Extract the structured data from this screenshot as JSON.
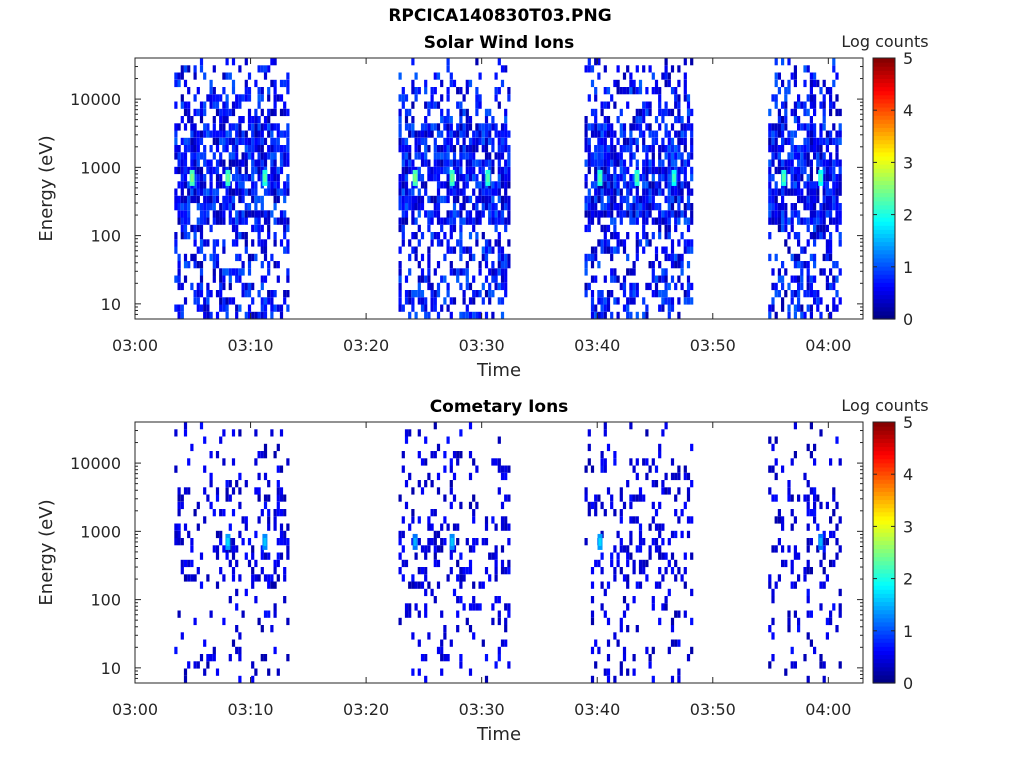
{
  "figure_title": "RPCICA140830T03.PNG",
  "colorbar": {
    "label": "Log counts",
    "ticks": [
      "0",
      "1",
      "2",
      "3",
      "4",
      "5"
    ],
    "range": [
      0,
      5
    ],
    "colormap": "jet"
  },
  "chart_data": [
    {
      "type": "heatmap",
      "title": "Solar Wind Ions",
      "xlabel": "Time",
      "ylabel": "Energy (eV)",
      "x_tick_labels": [
        "03:00",
        "03:10",
        "03:20",
        "03:30",
        "03:40",
        "03:50",
        "04:00"
      ],
      "x_tick_minutes": [
        0,
        10,
        20,
        30,
        40,
        50,
        60
      ],
      "xlim_minutes": [
        0,
        63
      ],
      "yscale": "log",
      "ylim": [
        6,
        40000
      ],
      "y_tick_labels": [
        "10",
        "100",
        "1000",
        "10000"
      ],
      "y_tick_values": [
        10,
        100,
        1000,
        10000
      ],
      "observation_windows_minutes": [
        [
          3.4,
          13.3
        ],
        [
          22.8,
          32.4
        ],
        [
          38.9,
          48.1
        ],
        [
          54.8,
          61.0
        ]
      ],
      "sweep_peaks": [
        {
          "time_minutes": 4.9,
          "energy_eV": 700,
          "log_counts": 2.2
        },
        {
          "time_minutes": 8.0,
          "energy_eV": 700,
          "log_counts": 2.1
        },
        {
          "time_minutes": 11.2,
          "energy_eV": 700,
          "log_counts": 2.0
        },
        {
          "time_minutes": 24.2,
          "energy_eV": 700,
          "log_counts": 2.2
        },
        {
          "time_minutes": 27.4,
          "energy_eV": 700,
          "log_counts": 2.1
        },
        {
          "time_minutes": 30.5,
          "energy_eV": 700,
          "log_counts": 2.0
        },
        {
          "time_minutes": 40.2,
          "energy_eV": 700,
          "log_counts": 2.0
        },
        {
          "time_minutes": 43.4,
          "energy_eV": 700,
          "log_counts": 2.0
        },
        {
          "time_minutes": 46.6,
          "energy_eV": 700,
          "log_counts": 1.9
        },
        {
          "time_minutes": 56.1,
          "energy_eV": 700,
          "log_counts": 2.0
        },
        {
          "time_minutes": 59.3,
          "energy_eV": 700,
          "log_counts": 1.9
        }
      ],
      "background_log_counts": [
        0,
        1
      ],
      "grid": false
    },
    {
      "type": "heatmap",
      "title": "Cometary Ions",
      "xlabel": "Time",
      "ylabel": "Energy (eV)",
      "x_tick_labels": [
        "03:00",
        "03:10",
        "03:20",
        "03:30",
        "03:40",
        "03:50",
        "04:00"
      ],
      "x_tick_minutes": [
        0,
        10,
        20,
        30,
        40,
        50,
        60
      ],
      "xlim_minutes": [
        0,
        63
      ],
      "yscale": "log",
      "ylim": [
        6,
        40000
      ],
      "y_tick_labels": [
        "10",
        "100",
        "1000",
        "10000"
      ],
      "y_tick_values": [
        10,
        100,
        1000,
        10000
      ],
      "observation_windows_minutes": [
        [
          3.4,
          13.3
        ],
        [
          22.8,
          32.4
        ],
        [
          38.9,
          48.1
        ],
        [
          54.8,
          61.0
        ]
      ],
      "sweep_peaks": [
        {
          "time_minutes": 8.0,
          "energy_eV": 700,
          "log_counts": 1.4
        },
        {
          "time_minutes": 11.2,
          "energy_eV": 700,
          "log_counts": 1.3
        },
        {
          "time_minutes": 24.2,
          "energy_eV": 700,
          "log_counts": 1.2
        },
        {
          "time_minutes": 27.4,
          "energy_eV": 700,
          "log_counts": 1.3
        },
        {
          "time_minutes": 40.2,
          "energy_eV": 700,
          "log_counts": 1.4
        },
        {
          "time_minutes": 59.3,
          "energy_eV": 700,
          "log_counts": 1.2
        }
      ],
      "background_log_counts": [
        0,
        0.7
      ],
      "grid": false
    }
  ]
}
